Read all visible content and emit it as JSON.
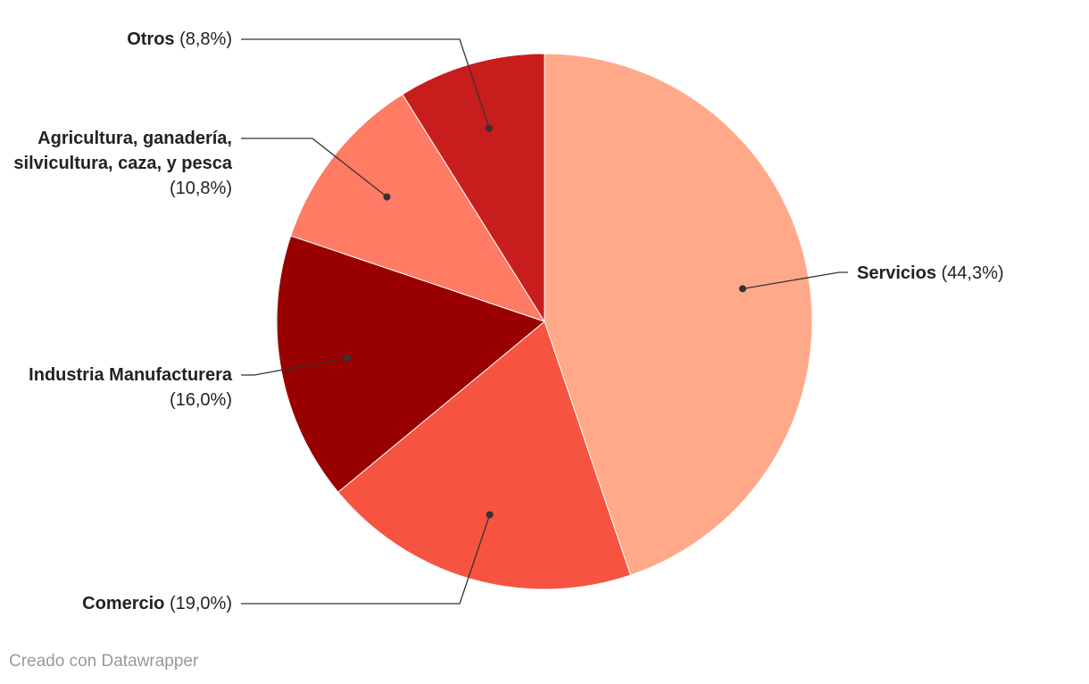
{
  "chart_data": {
    "type": "pie",
    "categories": [
      "Servicios",
      "Comercio",
      "Industria Manufacturera",
      "Agricultura, ganadería, silvicultura, caza, y pesca",
      "Otros"
    ],
    "values": [
      44.3,
      19.0,
      16.0,
      10.8,
      8.8
    ],
    "value_labels": [
      "(44,3%)",
      "(19,0%)",
      "(16,0%)",
      "(10,8%)",
      "(8,8%)"
    ],
    "colors": [
      "#ffa98a",
      "#f65441",
      "#990000",
      "#ff7b63",
      "#c81d1d"
    ],
    "credit": "Creado con Datawrapper"
  }
}
